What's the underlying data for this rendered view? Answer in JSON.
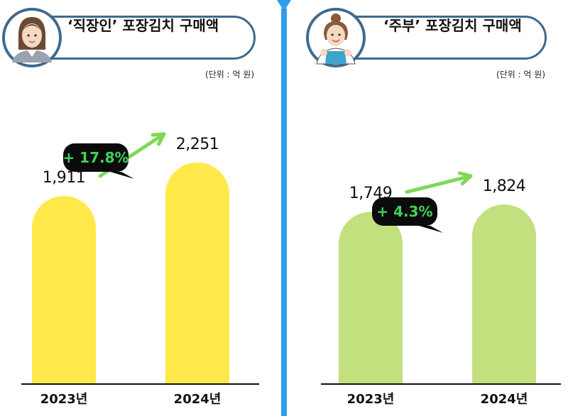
{
  "divider_color": "#2f9ded",
  "panels": [
    {
      "title": "‘직장인’ 포장김치 구매액",
      "unit": "(단위 : 억 원)",
      "avatar_icon": "office-worker-avatar-icon",
      "bar_color": "#ffe94a",
      "arrow_color": "#7fd858",
      "change_label": "+ 17.8%"
    },
    {
      "title": "‘주부’ 포장김치 구매액",
      "unit": "(단위 : 억 원)",
      "avatar_icon": "homemaker-avatar-icon",
      "bar_color": "#c2e07e",
      "arrow_color": "#7fd858",
      "change_label": "+ 4.3%"
    }
  ],
  "chart_data": [
    {
      "type": "bar",
      "title": "‘직장인’ 포장김치 구매액",
      "categories": [
        "2023년",
        "2024년"
      ],
      "values": [
        1911,
        2251
      ],
      "value_labels": [
        "1,911",
        "2,251"
      ],
      "ylabel": "(단위 : 억 원)",
      "annotation": "+ 17.8%",
      "grid": false
    },
    {
      "type": "bar",
      "title": "‘주부’ 포장김치 구매액",
      "categories": [
        "2023년",
        "2024년"
      ],
      "values": [
        1749,
        1824
      ],
      "value_labels": [
        "1,749",
        "1,824"
      ],
      "ylabel": "(단위 : 억 원)",
      "annotation": "+ 4.3%",
      "grid": false
    }
  ]
}
